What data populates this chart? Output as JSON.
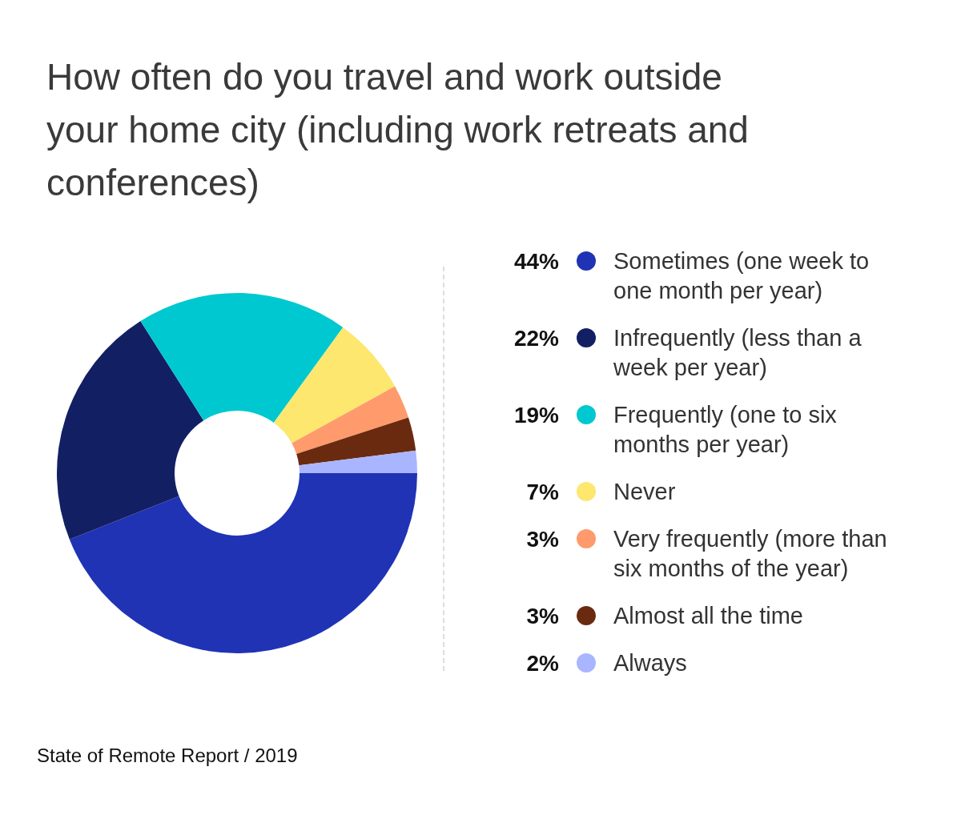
{
  "chart_data": {
    "type": "donut",
    "title": "How often do you travel and work outside your home city (including work retreats and conferences)",
    "categories": [
      "Sometimes (one week to one month per year)",
      "Infrequently (less than a week per year)",
      "Frequently (one to six months per year)",
      "Never",
      "Very frequently (more than six months of the year)",
      "Almost all the time",
      "Always"
    ],
    "values": [
      44,
      22,
      19,
      7,
      3,
      3,
      2
    ],
    "colors": [
      "#2033b5",
      "#131f63",
      "#00c8d0",
      "#fde76e",
      "#ff9a6c",
      "#6a2a10",
      "#aab5ff"
    ],
    "value_labels": [
      "44%",
      "22%",
      "19%",
      "7%",
      "3%",
      "3%",
      "2%"
    ],
    "legend": "right",
    "annotations": [
      "State of Remote Report / 2019"
    ]
  }
}
